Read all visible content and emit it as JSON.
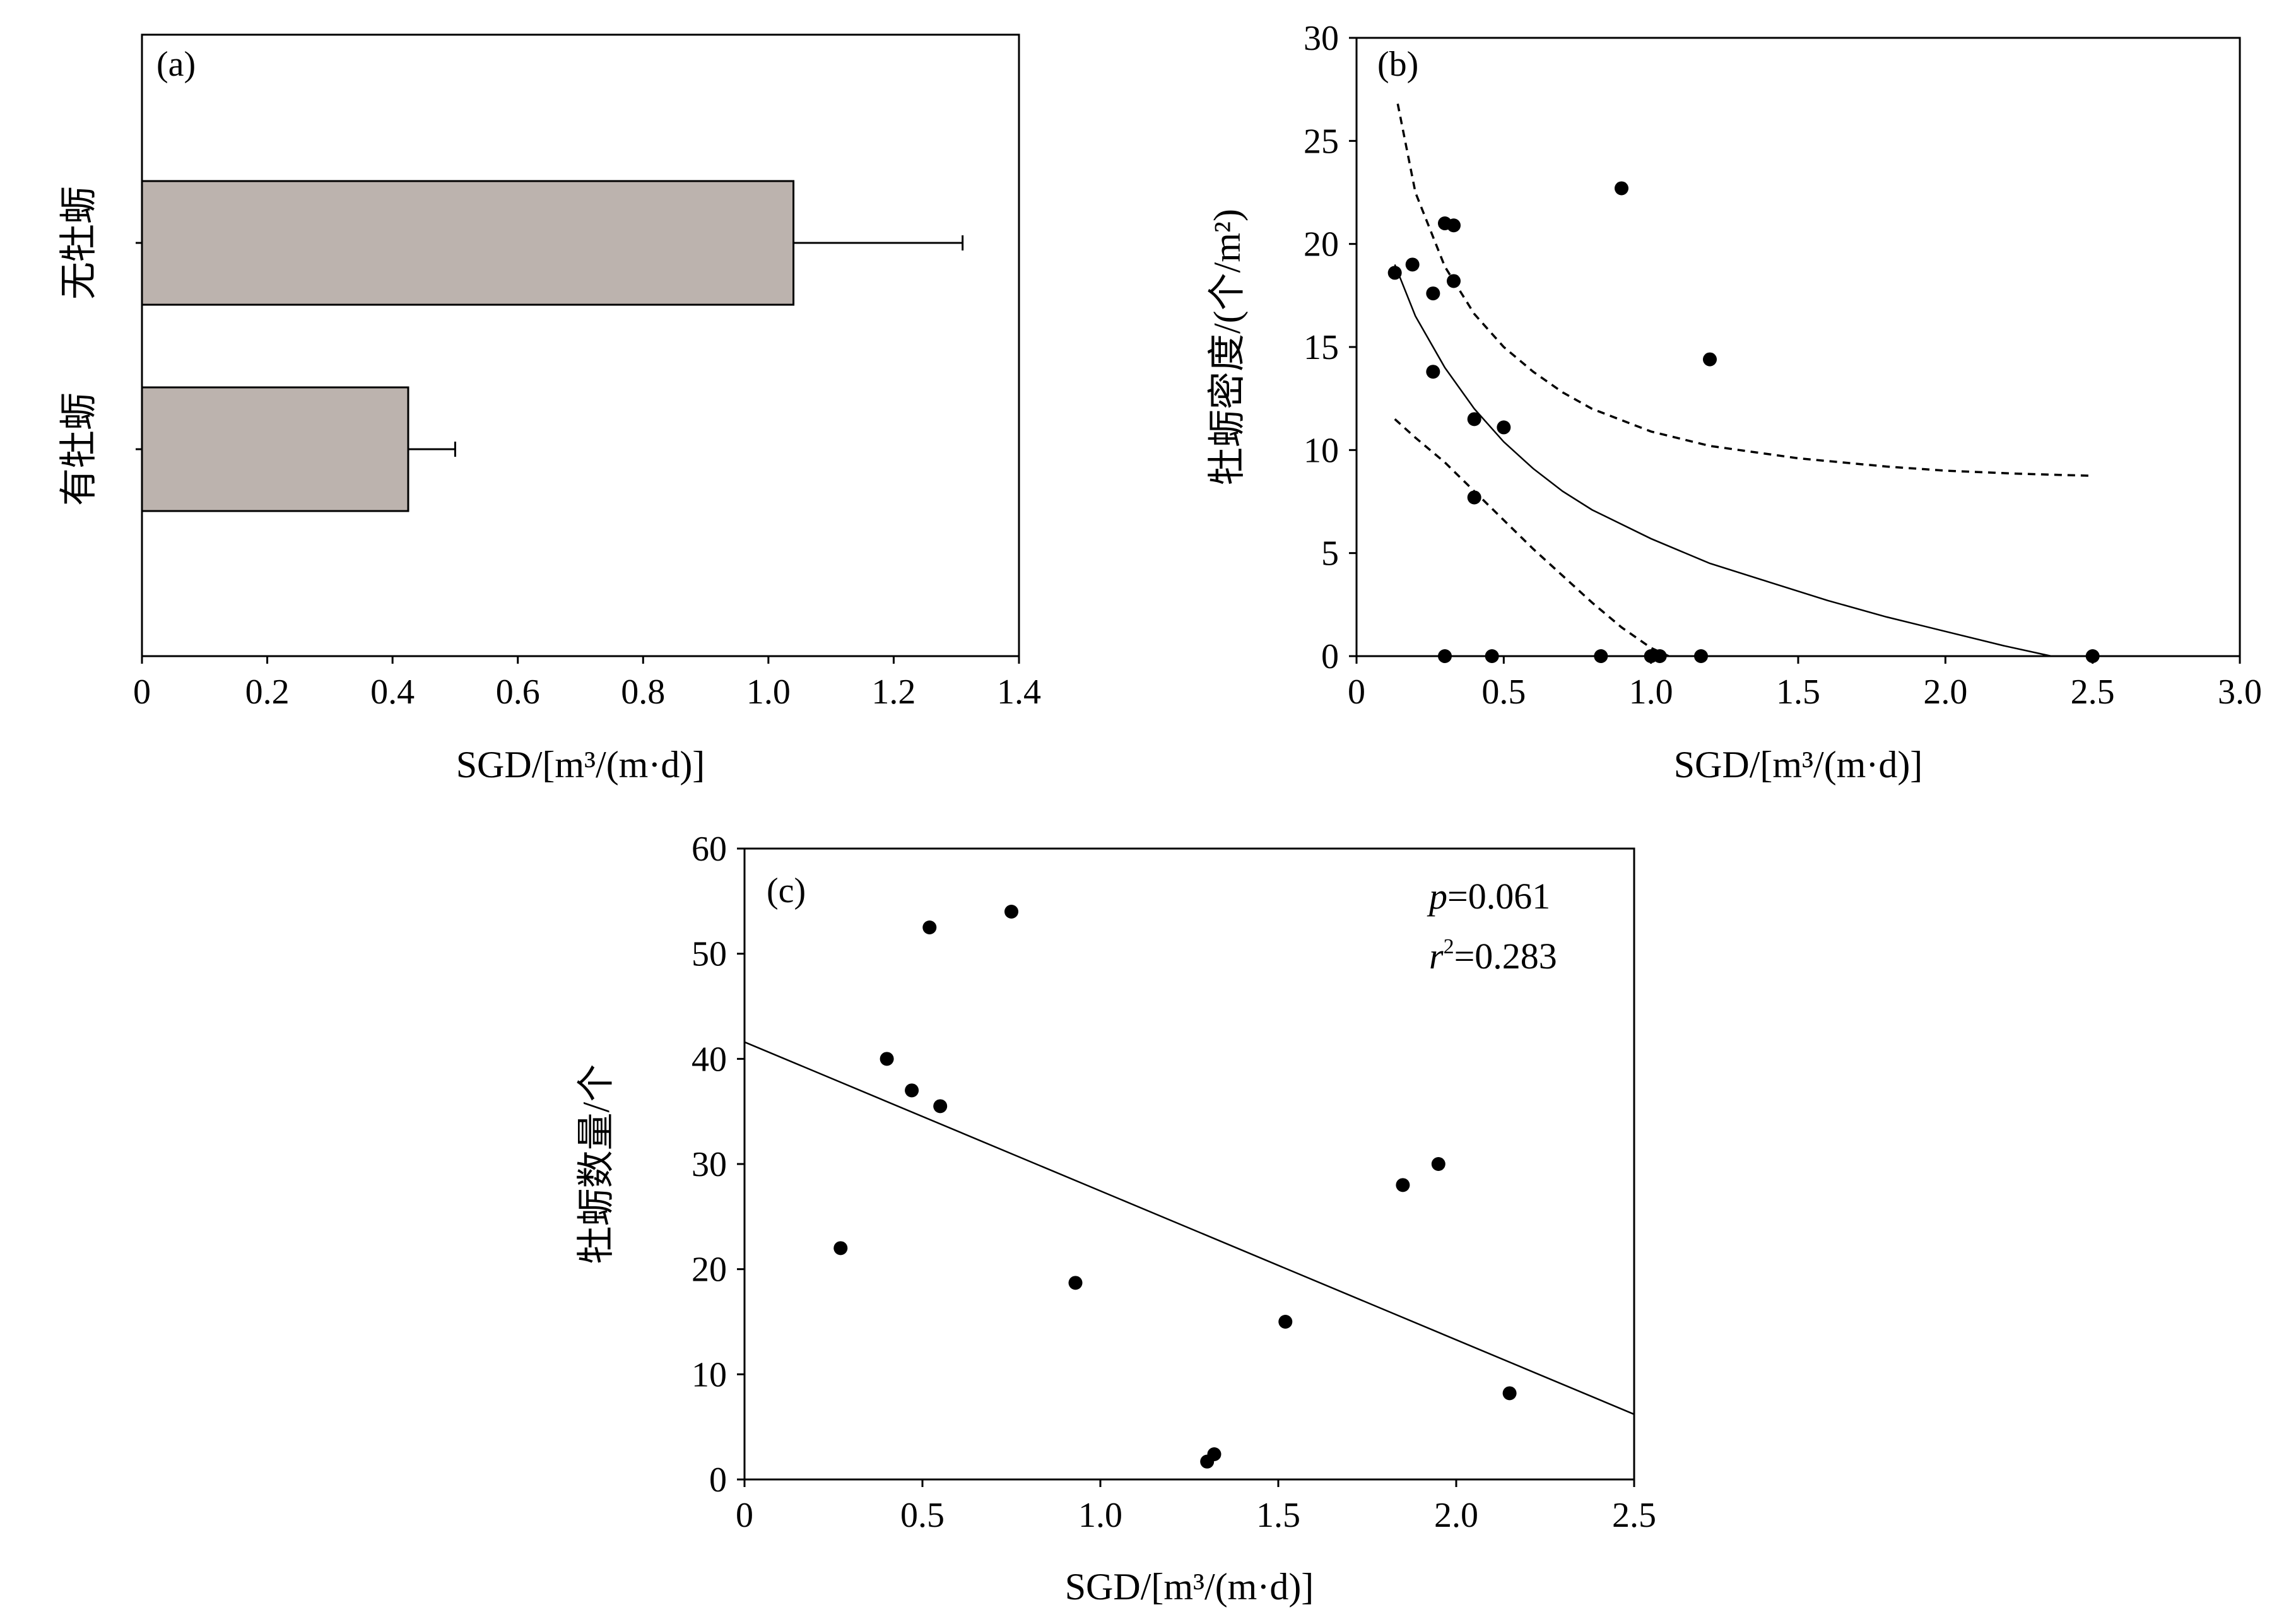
{
  "chart_data": [
    {
      "panel": "(a)",
      "type": "bar",
      "orientation": "horizontal",
      "categories": [
        "无牡蛎",
        "有牡蛎"
      ],
      "values": [
        1.04,
        0.425
      ],
      "errors": [
        0.27,
        0.075
      ],
      "xlabel": "SGD/[m³/(m·d)]",
      "ylabel": "",
      "xlim": [
        0,
        1.4
      ],
      "xticks": [
        "0",
        "0.2",
        "0.4",
        "0.6",
        "0.8",
        "1.0",
        "1.2",
        "1.4"
      ],
      "bar_color": "#bcb3ae"
    },
    {
      "panel": "(b)",
      "type": "scatter",
      "xlabel": "SGD/[m³/(m·d)]",
      "ylabel": "牡蛎密度/(个/m²)",
      "xlim": [
        0,
        3.0
      ],
      "ylim": [
        0,
        30
      ],
      "xticks": [
        "0",
        "0.5",
        "1.0",
        "1.5",
        "2.0",
        "2.5",
        "3.0"
      ],
      "yticks": [
        "0",
        "5",
        "10",
        "15",
        "20",
        "25",
        "30"
      ],
      "points": [
        [
          0.13,
          18.6
        ],
        [
          0.19,
          19.0
        ],
        [
          0.26,
          17.6
        ],
        [
          0.26,
          13.8
        ],
        [
          0.3,
          21.0
        ],
        [
          0.33,
          20.9
        ],
        [
          0.33,
          18.2
        ],
        [
          0.4,
          11.5
        ],
        [
          0.4,
          7.7
        ],
        [
          0.5,
          11.1
        ],
        [
          0.9,
          22.7
        ],
        [
          1.2,
          14.4
        ],
        [
          0.3,
          0
        ],
        [
          0.46,
          0
        ],
        [
          0.83,
          0
        ],
        [
          1.0,
          0
        ],
        [
          1.03,
          0
        ],
        [
          1.17,
          0
        ],
        [
          2.5,
          0
        ]
      ],
      "fit_curve": [
        [
          0.13,
          19.0
        ],
        [
          0.2,
          16.5
        ],
        [
          0.3,
          14.0
        ],
        [
          0.4,
          12.0
        ],
        [
          0.5,
          10.4
        ],
        [
          0.6,
          9.1
        ],
        [
          0.7,
          8.0
        ],
        [
          0.8,
          7.1
        ],
        [
          1.0,
          5.7
        ],
        [
          1.2,
          4.5
        ],
        [
          1.4,
          3.6
        ],
        [
          1.6,
          2.7
        ],
        [
          1.8,
          1.9
        ],
        [
          2.0,
          1.2
        ],
        [
          2.2,
          0.5
        ],
        [
          2.36,
          0.0
        ]
      ],
      "ci_upper": [
        [
          0.14,
          26.8
        ],
        [
          0.2,
          22.5
        ],
        [
          0.3,
          18.9
        ],
        [
          0.4,
          16.6
        ],
        [
          0.5,
          15.0
        ],
        [
          0.6,
          13.8
        ],
        [
          0.7,
          12.8
        ],
        [
          0.8,
          12.0
        ],
        [
          1.0,
          10.9
        ],
        [
          1.2,
          10.2
        ],
        [
          1.5,
          9.6
        ],
        [
          1.8,
          9.2
        ],
        [
          2.0,
          9.0
        ],
        [
          2.25,
          8.85
        ],
        [
          2.5,
          8.75
        ]
      ],
      "ci_lower": [
        [
          0.13,
          11.5
        ],
        [
          0.2,
          10.6
        ],
        [
          0.3,
          9.4
        ],
        [
          0.4,
          8.0
        ],
        [
          0.5,
          6.6
        ],
        [
          0.6,
          5.2
        ],
        [
          0.7,
          3.9
        ],
        [
          0.8,
          2.6
        ],
        [
          0.9,
          1.4
        ],
        [
          1.0,
          0.4
        ],
        [
          1.06,
          0.0
        ]
      ]
    },
    {
      "panel": "(c)",
      "type": "scatter",
      "xlabel": "SGD/[m³/(m·d)]",
      "ylabel": "牡蛎数量/个",
      "xlim": [
        0,
        2.5
      ],
      "ylim": [
        0,
        60
      ],
      "xticks": [
        "0",
        "0.5",
        "1.0",
        "1.5",
        "2.0",
        "2.5"
      ],
      "yticks": [
        "0",
        "10",
        "20",
        "30",
        "40",
        "50",
        "60"
      ],
      "points": [
        [
          0.27,
          22
        ],
        [
          0.4,
          40
        ],
        [
          0.47,
          37
        ],
        [
          0.52,
          52.5
        ],
        [
          0.55,
          35.5
        ],
        [
          0.75,
          54
        ],
        [
          0.93,
          18.7
        ],
        [
          1.3,
          1.7
        ],
        [
          1.32,
          2.4
        ],
        [
          1.52,
          15
        ],
        [
          1.85,
          28
        ],
        [
          1.95,
          30
        ],
        [
          2.15,
          8.2
        ]
      ],
      "fit_line": [
        [
          0,
          41.6
        ],
        [
          2.5,
          6.2
        ]
      ],
      "stats": {
        "p_symbol": "p",
        "p_value": "=0.061",
        "r_symbol": "r",
        "r_sup": "2",
        "r_value": "=0.283"
      }
    }
  ]
}
